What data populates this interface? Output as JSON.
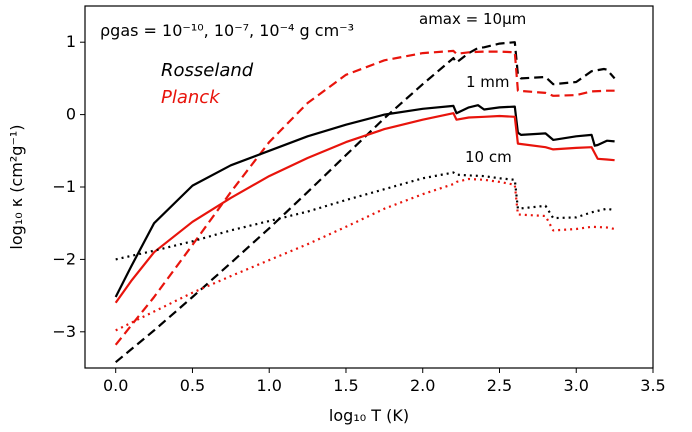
{
  "chart_data": {
    "type": "line",
    "xlabel": "log₁₀ T (K)",
    "ylabel": "log₁₀ κ (cm²g⁻¹)",
    "xlim": [
      -0.2,
      3.5
    ],
    "ylim": [
      -3.5,
      1.5
    ],
    "xticks": [
      "0.0",
      "0.5",
      "1.0",
      "1.5",
      "2.0",
      "2.5",
      "3.0",
      "3.5"
    ],
    "yticks": [
      "−3",
      "−2",
      "−1",
      "0",
      "1"
    ],
    "grid": false,
    "annotations": {
      "density": "ρgas = 10⁻¹⁰,  10⁻⁷,  10⁻⁴ g cm⁻³",
      "rosseland": "Rosseland",
      "planck": "Planck",
      "amax": "amax = 10μm",
      "mm": "1 mm",
      "cm": "10 cm"
    },
    "colors": {
      "rosseland": "#000000",
      "planck": "#e8140c"
    },
    "series": [
      {
        "mean": "Rosseland",
        "grain": "10um",
        "style": "dashed",
        "color": "#000000",
        "x": [
          0.0,
          0.25,
          0.5,
          0.75,
          1.0,
          1.25,
          1.5,
          1.75,
          2.0,
          2.2,
          2.22,
          2.3,
          2.36,
          2.4,
          2.5,
          2.6,
          2.62,
          2.64,
          2.8,
          2.85,
          3.0,
          3.1,
          3.18,
          3.2,
          3.25
        ],
        "y": [
          -3.42,
          -2.98,
          -2.52,
          -2.05,
          -1.57,
          -1.07,
          -0.56,
          -0.05,
          0.42,
          0.78,
          0.72,
          0.85,
          0.92,
          0.93,
          0.98,
          1.0,
          0.55,
          0.5,
          0.52,
          0.42,
          0.45,
          0.6,
          0.63,
          0.62,
          0.5
        ]
      },
      {
        "mean": "Planck",
        "grain": "10um",
        "style": "dashed",
        "color": "#e8140c",
        "x": [
          0.0,
          0.25,
          0.5,
          0.75,
          1.0,
          1.25,
          1.5,
          1.75,
          2.0,
          2.2,
          2.22,
          2.3,
          2.4,
          2.5,
          2.6,
          2.62,
          2.8,
          2.85,
          3.0,
          3.1,
          3.2,
          3.25
        ],
        "y": [
          -3.18,
          -2.52,
          -1.8,
          -1.07,
          -0.38,
          0.16,
          0.55,
          0.75,
          0.85,
          0.88,
          0.84,
          0.86,
          0.87,
          0.87,
          0.86,
          0.33,
          0.3,
          0.26,
          0.27,
          0.32,
          0.33,
          0.33
        ]
      },
      {
        "mean": "Rosseland",
        "grain": "1mm",
        "style": "solid",
        "color": "#000000",
        "x": [
          0.0,
          0.1,
          0.25,
          0.5,
          0.75,
          1.0,
          1.25,
          1.5,
          1.75,
          2.0,
          2.2,
          2.22,
          2.3,
          2.36,
          2.4,
          2.5,
          2.6,
          2.62,
          2.64,
          2.8,
          2.85,
          3.0,
          3.1,
          3.12,
          3.14,
          3.2,
          3.25
        ],
        "y": [
          -2.52,
          -2.1,
          -1.5,
          -0.98,
          -0.7,
          -0.5,
          -0.3,
          -0.14,
          0.0,
          0.08,
          0.12,
          0.02,
          0.1,
          0.13,
          0.07,
          0.1,
          0.11,
          -0.25,
          -0.28,
          -0.26,
          -0.35,
          -0.3,
          -0.28,
          -0.43,
          -0.42,
          -0.36,
          -0.37
        ]
      },
      {
        "mean": "Planck",
        "grain": "1mm",
        "style": "solid",
        "color": "#e8140c",
        "x": [
          0.0,
          0.1,
          0.25,
          0.5,
          0.75,
          1.0,
          1.25,
          1.5,
          1.75,
          2.0,
          2.2,
          2.22,
          2.3,
          2.4,
          2.5,
          2.6,
          2.62,
          2.8,
          2.85,
          3.0,
          3.1,
          3.14,
          3.2,
          3.25
        ],
        "y": [
          -2.6,
          -2.3,
          -1.9,
          -1.48,
          -1.15,
          -0.85,
          -0.6,
          -0.38,
          -0.2,
          -0.07,
          0.02,
          -0.07,
          -0.04,
          -0.03,
          -0.02,
          -0.03,
          -0.4,
          -0.45,
          -0.48,
          -0.46,
          -0.45,
          -0.61,
          -0.62,
          -0.63
        ]
      },
      {
        "mean": "Rosseland",
        "grain": "10cm",
        "style": "dotted",
        "color": "#000000",
        "x": [
          0.0,
          0.25,
          0.5,
          0.75,
          1.0,
          1.25,
          1.5,
          1.75,
          2.0,
          2.2,
          2.22,
          2.3,
          2.4,
          2.5,
          2.6,
          2.62,
          2.8,
          2.85,
          3.0,
          3.1,
          3.2,
          3.25
        ],
        "y": [
          -2.0,
          -1.88,
          -1.75,
          -1.6,
          -1.47,
          -1.34,
          -1.18,
          -1.03,
          -0.88,
          -0.8,
          -0.83,
          -0.84,
          -0.85,
          -0.88,
          -0.9,
          -1.3,
          -1.26,
          -1.43,
          -1.42,
          -1.35,
          -1.3,
          -1.32
        ]
      },
      {
        "mean": "Planck",
        "grain": "10cm",
        "style": "dotted",
        "color": "#e8140c",
        "x": [
          0.0,
          0.25,
          0.5,
          0.75,
          1.0,
          1.25,
          1.5,
          1.75,
          2.0,
          2.2,
          2.22,
          2.3,
          2.4,
          2.5,
          2.6,
          2.62,
          2.8,
          2.85,
          3.0,
          3.1,
          3.2,
          3.25
        ],
        "y": [
          -2.98,
          -2.72,
          -2.46,
          -2.23,
          -2.01,
          -1.79,
          -1.55,
          -1.3,
          -1.1,
          -0.96,
          -0.93,
          -0.89,
          -0.9,
          -0.93,
          -0.97,
          -1.38,
          -1.4,
          -1.6,
          -1.58,
          -1.55,
          -1.56,
          -1.58
        ]
      }
    ]
  }
}
